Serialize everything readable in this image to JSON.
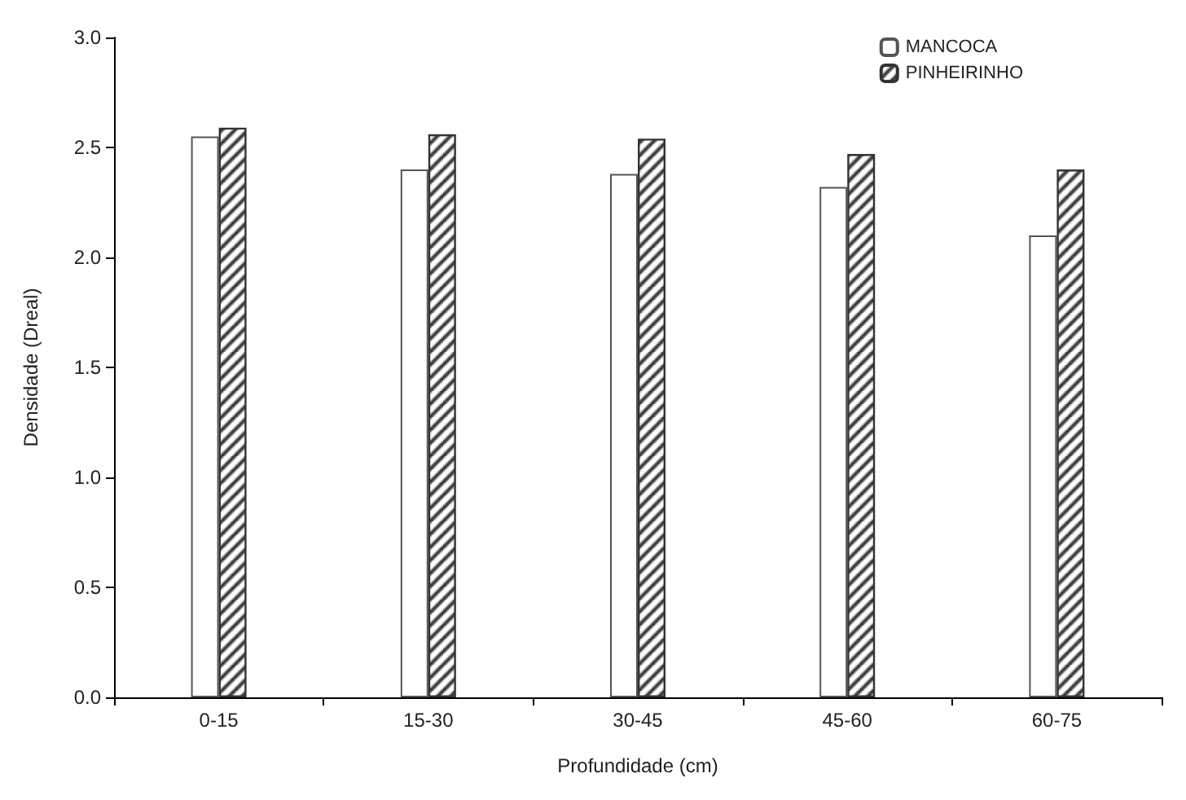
{
  "chart_data": {
    "type": "bar",
    "xlabel": "Profundidade (cm)",
    "ylabel": "Densidade (Dreal)",
    "categories": [
      "0-15",
      "15-30",
      "30-45",
      "45-60",
      "60-75"
    ],
    "series": [
      {
        "name": "MANCOCA",
        "color": "#ffffff",
        "values": [
          2.55,
          2.4,
          2.38,
          2.32,
          2.1
        ]
      },
      {
        "name": "PINHEIRINHO",
        "color": "#333333",
        "values": [
          2.59,
          2.56,
          2.54,
          2.47,
          2.4
        ]
      }
    ],
    "ylim": [
      0,
      3
    ],
    "yticks": [
      {
        "value": 0,
        "label": "0.0"
      },
      {
        "value": 0.5,
        "label": "0.5"
      },
      {
        "value": 1,
        "label": "1.0"
      },
      {
        "value": 1.5,
        "label": "1.5"
      },
      {
        "value": 2,
        "label": "2.0"
      },
      {
        "value": 2.5,
        "label": "2.5"
      },
      {
        "value": 3,
        "label": "3.0"
      }
    ],
    "grid": false,
    "legend": "top right"
  }
}
